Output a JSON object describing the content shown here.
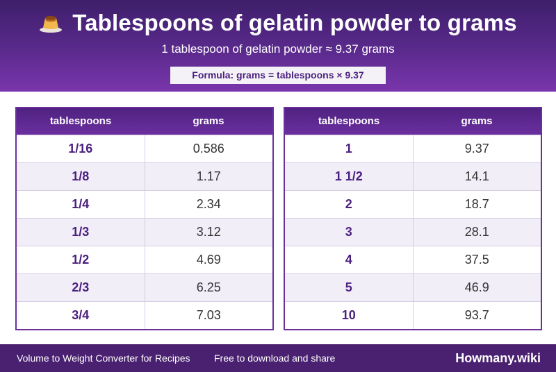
{
  "header": {
    "icon": "flan-pudding-icon",
    "title": "Tablespoons of gelatin powder to grams",
    "subtitle": "1 tablespoon of gelatin powder ≈ 9.37 grams",
    "formula": "Formula: grams = tablespoons × 9.37"
  },
  "tables": {
    "left": {
      "col1": "tablespoons",
      "col2": "grams",
      "rows": [
        {
          "tbsp": "1/16",
          "grams": "0.586"
        },
        {
          "tbsp": "1/8",
          "grams": "1.17"
        },
        {
          "tbsp": "1/4",
          "grams": "2.34"
        },
        {
          "tbsp": "1/3",
          "grams": "3.12"
        },
        {
          "tbsp": "1/2",
          "grams": "4.69"
        },
        {
          "tbsp": "2/3",
          "grams": "6.25"
        },
        {
          "tbsp": "3/4",
          "grams": "7.03"
        }
      ]
    },
    "right": {
      "col1": "tablespoons",
      "col2": "grams",
      "rows": [
        {
          "tbsp": "1",
          "grams": "9.37"
        },
        {
          "tbsp": "1 1/2",
          "grams": "14.1"
        },
        {
          "tbsp": "2",
          "grams": "18.7"
        },
        {
          "tbsp": "3",
          "grams": "28.1"
        },
        {
          "tbsp": "4",
          "grams": "37.5"
        },
        {
          "tbsp": "5",
          "grams": "46.9"
        },
        {
          "tbsp": "10",
          "grams": "93.7"
        }
      ]
    }
  },
  "footer": {
    "left_text": "Volume to Weight Converter for Recipes",
    "middle_text": "Free to download and share",
    "brand": "Howmany.wiki"
  },
  "colors": {
    "header_dark": "#3e1f6b",
    "header_light": "#7a36ad",
    "accent_text": "#4a1f7e",
    "footer": "#4a2170"
  }
}
